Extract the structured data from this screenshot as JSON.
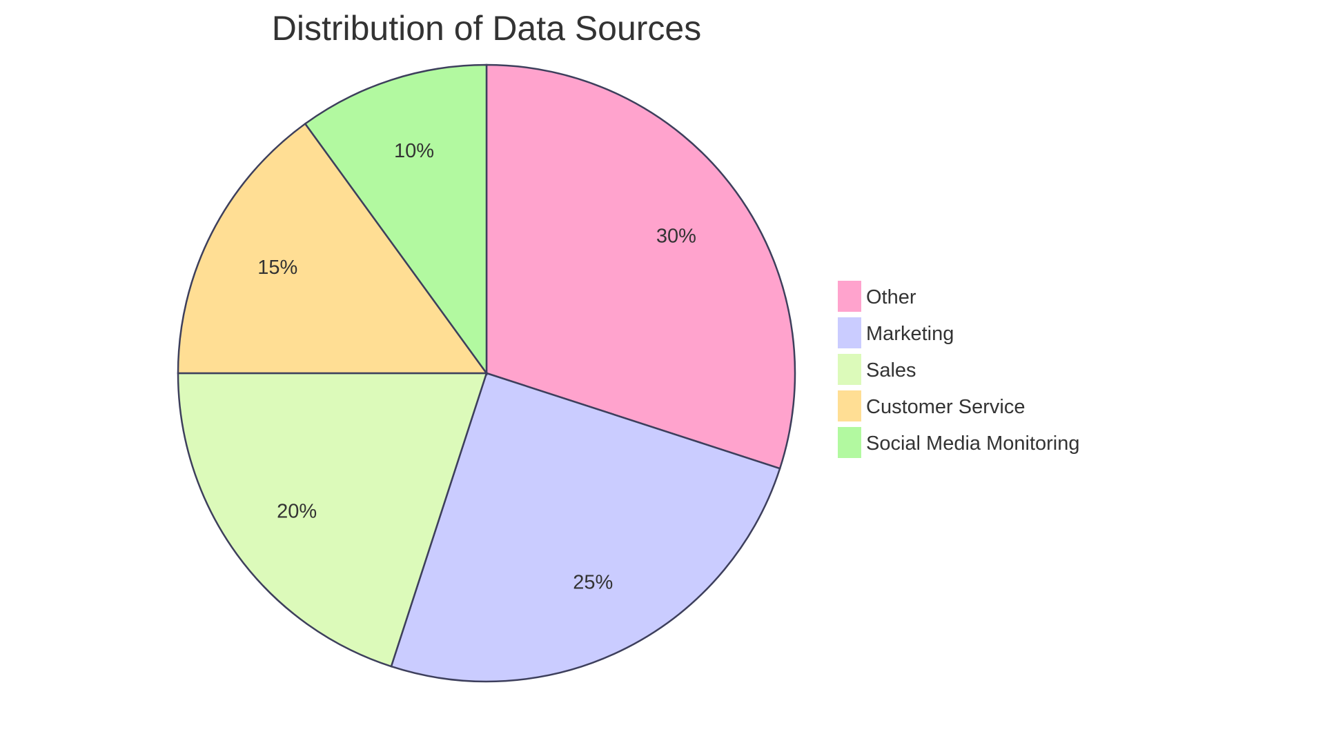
{
  "chart_data": {
    "type": "pie",
    "title": "Distribution of Data Sources",
    "categories": [
      "Other",
      "Marketing",
      "Sales",
      "Customer Service",
      "Social Media Monitoring"
    ],
    "values": [
      30,
      25,
      20,
      15,
      10
    ],
    "labels": [
      "30%",
      "25%",
      "20%",
      "15%",
      "10%"
    ],
    "colors": [
      "#FFA3CD",
      "#CACCFF",
      "#DCFABA",
      "#FFDE94",
      "#B2F9A0"
    ],
    "stroke_color": "#3D3F5C",
    "legend_placement": "right",
    "start_angle": "top, clockwise"
  }
}
